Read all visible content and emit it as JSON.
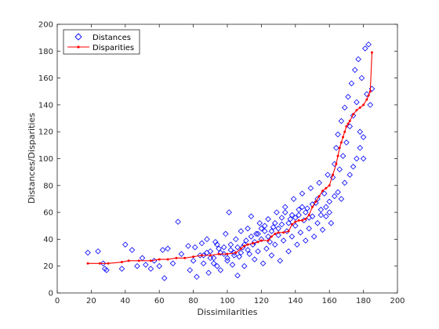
{
  "chart_data": {
    "type": "scatter",
    "xlabel": "Dissimilarities",
    "ylabel": "Distances/Disparities",
    "xlim": [
      0,
      200
    ],
    "ylim": [
      0,
      200
    ],
    "x_ticks": [
      0,
      20,
      40,
      60,
      80,
      100,
      120,
      140,
      160,
      180,
      200
    ],
    "y_ticks": [
      0,
      20,
      40,
      60,
      80,
      100,
      120,
      140,
      160,
      180,
      200
    ],
    "grid": false,
    "legend_position": "top-left",
    "series": [
      {
        "name": "Distances",
        "style": "markers",
        "marker": "diamond-open",
        "color": "#0000ff",
        "points": [
          [
            18,
            30
          ],
          [
            24,
            31
          ],
          [
            27,
            22
          ],
          [
            28,
            18
          ],
          [
            29,
            17
          ],
          [
            38,
            18
          ],
          [
            40,
            36
          ],
          [
            44,
            32
          ],
          [
            47,
            20
          ],
          [
            50,
            26
          ],
          [
            52,
            21
          ],
          [
            55,
            18
          ],
          [
            57,
            24
          ],
          [
            60,
            20
          ],
          [
            62,
            32
          ],
          [
            63,
            11
          ],
          [
            65,
            33
          ],
          [
            68,
            22
          ],
          [
            71,
            53
          ],
          [
            73,
            29
          ],
          [
            77,
            35
          ],
          [
            78,
            17
          ],
          [
            80,
            24
          ],
          [
            81,
            34
          ],
          [
            82,
            12
          ],
          [
            84,
            28
          ],
          [
            85,
            37
          ],
          [
            86,
            22
          ],
          [
            88,
            40
          ],
          [
            89,
            15
          ],
          [
            90,
            31
          ],
          [
            92,
            26
          ],
          [
            93,
            38
          ],
          [
            94,
            20
          ],
          [
            95,
            33
          ],
          [
            96,
            17
          ],
          [
            98,
            29
          ],
          [
            99,
            44
          ],
          [
            100,
            24
          ],
          [
            101,
            60
          ],
          [
            102,
            36
          ],
          [
            103,
            21
          ],
          [
            104,
            30
          ],
          [
            105,
            40
          ],
          [
            106,
            13
          ],
          [
            107,
            27
          ],
          [
            108,
            46
          ],
          [
            109,
            34
          ],
          [
            110,
            20
          ],
          [
            111,
            39
          ],
          [
            112,
            48
          ],
          [
            113,
            29
          ],
          [
            114,
            57
          ],
          [
            115,
            36
          ],
          [
            116,
            25
          ],
          [
            117,
            44
          ],
          [
            118,
            31
          ],
          [
            119,
            52
          ],
          [
            120,
            40
          ],
          [
            121,
            22
          ],
          [
            122,
            46
          ],
          [
            123,
            33
          ],
          [
            124,
            55
          ],
          [
            125,
            38
          ],
          [
            126,
            28
          ],
          [
            127,
            49
          ],
          [
            128,
            36
          ],
          [
            129,
            60
          ],
          [
            130,
            43
          ],
          [
            131,
            24
          ],
          [
            132,
            51
          ],
          [
            133,
            39
          ],
          [
            134,
            64
          ],
          [
            135,
            46
          ],
          [
            136,
            31
          ],
          [
            137,
            55
          ],
          [
            138,
            42
          ],
          [
            139,
            70
          ],
          [
            140,
            50
          ],
          [
            141,
            36
          ],
          [
            142,
            58
          ],
          [
            143,
            45
          ],
          [
            144,
            74
          ],
          [
            145,
            54
          ],
          [
            146,
            39
          ],
          [
            147,
            63
          ],
          [
            148,
            48
          ],
          [
            149,
            78
          ],
          [
            150,
            57
          ],
          [
            151,
            42
          ],
          [
            152,
            67
          ],
          [
            153,
            52
          ],
          [
            154,
            82
          ],
          [
            155,
            62
          ],
          [
            156,
            47
          ],
          [
            157,
            74
          ],
          [
            158,
            57
          ],
          [
            159,
            88
          ],
          [
            160,
            68
          ],
          [
            161,
            52
          ],
          [
            162,
            86
          ],
          [
            163,
            96
          ],
          [
            164,
            108
          ],
          [
            165,
            118
          ],
          [
            166,
            92
          ],
          [
            167,
            128
          ],
          [
            168,
            102
          ],
          [
            169,
            138
          ],
          [
            170,
            112
          ],
          [
            171,
            146
          ],
          [
            172,
            124
          ],
          [
            173,
            156
          ],
          [
            174,
            132
          ],
          [
            175,
            166
          ],
          [
            176,
            142
          ],
          [
            177,
            174
          ],
          [
            178,
            120
          ],
          [
            179,
            160
          ],
          [
            180,
            100
          ],
          [
            181,
            182
          ],
          [
            182,
            148
          ],
          [
            183,
            185
          ],
          [
            184,
            140
          ],
          [
            185,
            152
          ],
          [
            165,
            75
          ],
          [
            167,
            70
          ],
          [
            169,
            82
          ],
          [
            172,
            88
          ],
          [
            174,
            94
          ],
          [
            176,
            100
          ],
          [
            178,
            108
          ],
          [
            180,
            116
          ],
          [
            163,
            72
          ],
          [
            160,
            60
          ],
          [
            158,
            64
          ],
          [
            155,
            58
          ],
          [
            153,
            70
          ],
          [
            150,
            66
          ],
          [
            148,
            56
          ],
          [
            146,
            60
          ],
          [
            144,
            64
          ],
          [
            142,
            62
          ],
          [
            140,
            56
          ],
          [
            138,
            58
          ],
          [
            136,
            52
          ],
          [
            134,
            60
          ],
          [
            132,
            56
          ],
          [
            130,
            48
          ],
          [
            128,
            52
          ],
          [
            126,
            46
          ],
          [
            124,
            42
          ],
          [
            122,
            50
          ],
          [
            120,
            48
          ],
          [
            118,
            44
          ],
          [
            116,
            38
          ],
          [
            114,
            42
          ],
          [
            112,
            32
          ],
          [
            110,
            36
          ],
          [
            108,
            30
          ],
          [
            106,
            34
          ],
          [
            104,
            28
          ],
          [
            102,
            32
          ],
          [
            100,
            26
          ],
          [
            98,
            34
          ],
          [
            96,
            30
          ],
          [
            94,
            36
          ],
          [
            92,
            22
          ],
          [
            90,
            26
          ],
          [
            88,
            30
          ],
          [
            86,
            28
          ]
        ]
      },
      {
        "name": "Disparities",
        "style": "line-markers",
        "marker": "dot",
        "color": "#ff0000",
        "points": [
          [
            18,
            22
          ],
          [
            25,
            22
          ],
          [
            30,
            22
          ],
          [
            38,
            23
          ],
          [
            42,
            24
          ],
          [
            48,
            24
          ],
          [
            55,
            24
          ],
          [
            60,
            25
          ],
          [
            65,
            25
          ],
          [
            70,
            26
          ],
          [
            75,
            26
          ],
          [
            80,
            27
          ],
          [
            85,
            28
          ],
          [
            90,
            28
          ],
          [
            95,
            29
          ],
          [
            100,
            29
          ],
          [
            105,
            30
          ],
          [
            108,
            33
          ],
          [
            110,
            35
          ],
          [
            112,
            36
          ],
          [
            115,
            37
          ],
          [
            118,
            38
          ],
          [
            120,
            39
          ],
          [
            124,
            39
          ],
          [
            126,
            42
          ],
          [
            128,
            44
          ],
          [
            130,
            45
          ],
          [
            133,
            45
          ],
          [
            136,
            46
          ],
          [
            138,
            51
          ],
          [
            140,
            53
          ],
          [
            142,
            54
          ],
          [
            144,
            54
          ],
          [
            146,
            55
          ],
          [
            148,
            58
          ],
          [
            150,
            64
          ],
          [
            152,
            68
          ],
          [
            154,
            72
          ],
          [
            156,
            76
          ],
          [
            158,
            78
          ],
          [
            160,
            80
          ],
          [
            162,
            88
          ],
          [
            164,
            96
          ],
          [
            165,
            102
          ],
          [
            166,
            108
          ],
          [
            167,
            112
          ],
          [
            168,
            116
          ],
          [
            169,
            120
          ],
          [
            170,
            124
          ],
          [
            171,
            126
          ],
          [
            172,
            128
          ],
          [
            174,
            133
          ],
          [
            176,
            136
          ],
          [
            178,
            138
          ],
          [
            180,
            140
          ],
          [
            182,
            144
          ],
          [
            183,
            147
          ],
          [
            184,
            150
          ],
          [
            185,
            179
          ]
        ]
      }
    ]
  }
}
